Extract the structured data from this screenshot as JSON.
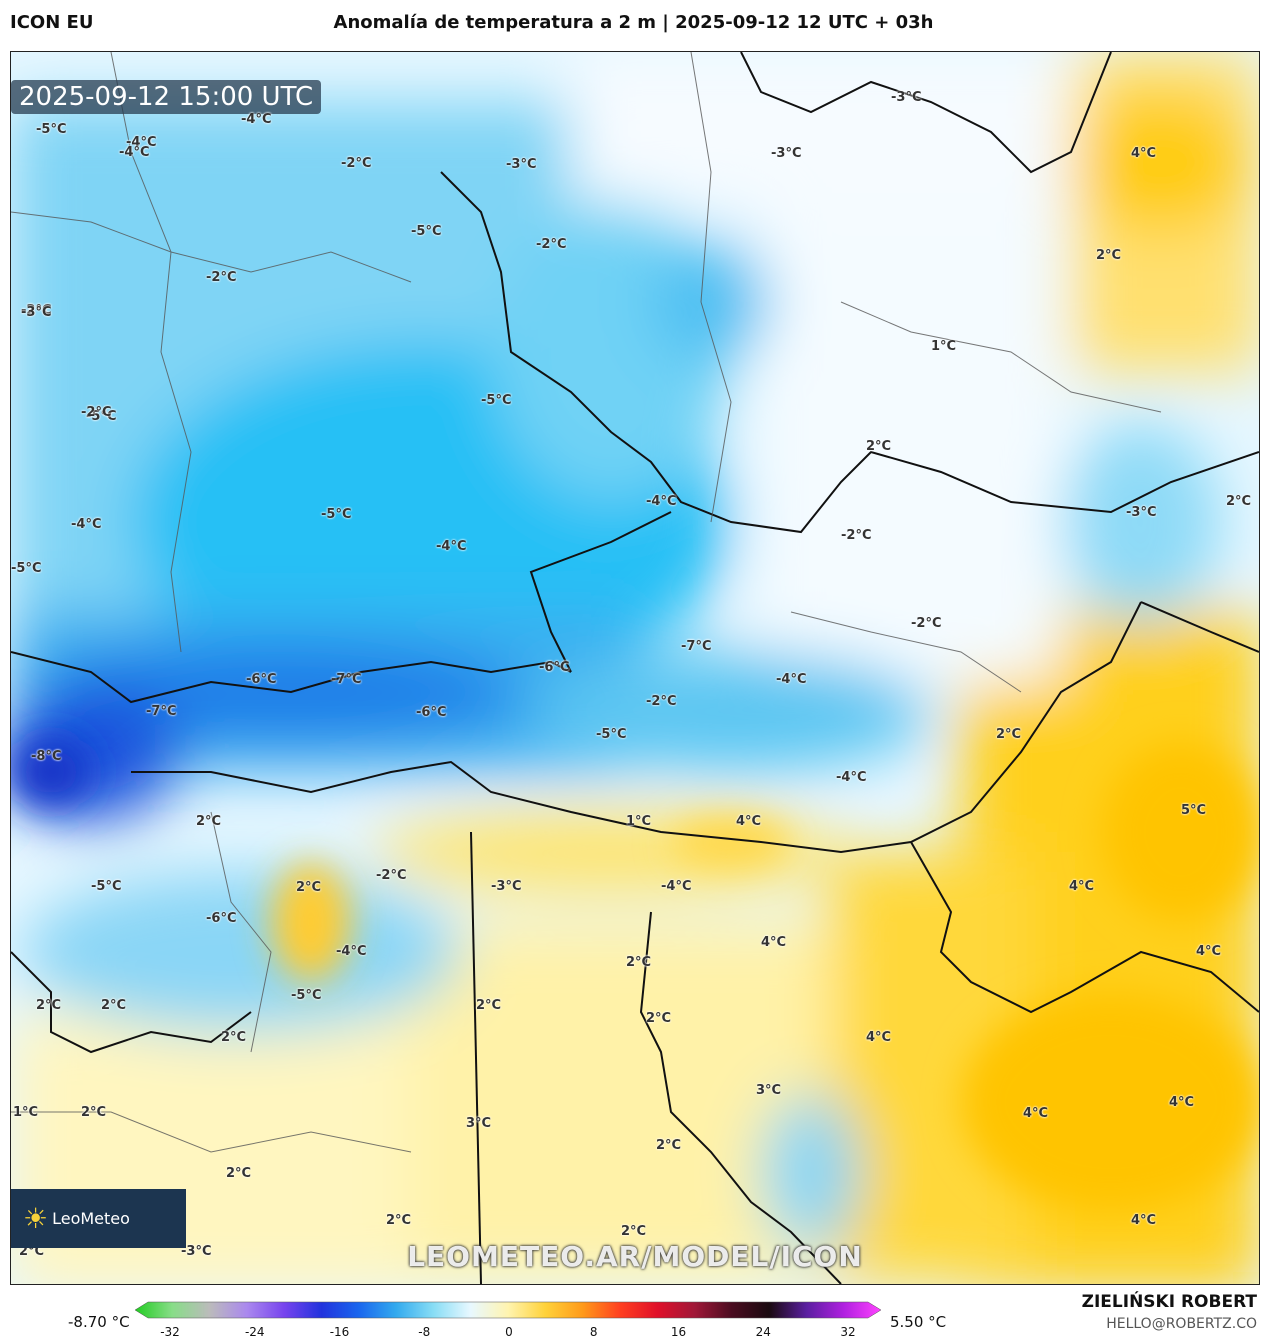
{
  "header": {
    "model": "ICON EU",
    "title": "Anomalía de temperatura a 2 m | 2025-09-12 12 UTC + 03h"
  },
  "map": {
    "timestamp": "2025-09-12 15:00 UTC",
    "watermark": "LEOMETEO.AR/MODEL/ICON",
    "logo_text": "LeoMeteo",
    "labels": [
      {
        "t": "-5°C"
      },
      {
        "t": "-4°C"
      },
      {
        "t": "-4°C"
      },
      {
        "t": "-2°C"
      },
      {
        "t": "-3°C"
      },
      {
        "t": "-3°C"
      },
      {
        "t": "-5°C"
      },
      {
        "t": "-2°C"
      },
      {
        "t": "-3°C"
      },
      {
        "t": "-2°C"
      },
      {
        "t": "4°C"
      },
      {
        "t": "-2°C"
      },
      {
        "t": "-3°C"
      },
      {
        "t": "-4°C"
      },
      {
        "t": "2°C"
      },
      {
        "t": "1°C"
      },
      {
        "t": "-5°C"
      },
      {
        "t": "-5°C"
      },
      {
        "t": "-2°C"
      },
      {
        "t": "2°C"
      },
      {
        "t": "-4°C"
      },
      {
        "t": "-5°C"
      },
      {
        "t": "-4°C"
      },
      {
        "t": "-3°C"
      },
      {
        "t": "2°C"
      },
      {
        "t": "-5°C"
      },
      {
        "t": "-2°C"
      },
      {
        "t": "-4°C"
      },
      {
        "t": "-2°C"
      },
      {
        "t": "-7°C"
      },
      {
        "t": "-6°C"
      },
      {
        "t": "-7°C"
      },
      {
        "t": "-6°C"
      },
      {
        "t": "-4°C"
      },
      {
        "t": "-7°C"
      },
      {
        "t": "-2°C"
      },
      {
        "t": "-6°C"
      },
      {
        "t": "-5°C"
      },
      {
        "t": "2°C"
      },
      {
        "t": "-8°C"
      },
      {
        "t": "-4°C"
      },
      {
        "t": "5°C"
      },
      {
        "t": "2°C"
      },
      {
        "t": "1°C"
      },
      {
        "t": "4°C"
      },
      {
        "t": "-5°C"
      },
      {
        "t": "2°C"
      },
      {
        "t": "-2°C"
      },
      {
        "t": "-3°C"
      },
      {
        "t": "-4°C"
      },
      {
        "t": "4°C"
      },
      {
        "t": "-6°C"
      },
      {
        "t": "-4°C"
      },
      {
        "t": "4°C"
      },
      {
        "t": "2°C"
      },
      {
        "t": "4°C"
      },
      {
        "t": "2°C"
      },
      {
        "t": "2°C"
      },
      {
        "t": "-5°C"
      },
      {
        "t": "2°C"
      },
      {
        "t": "2°C"
      },
      {
        "t": "4°C"
      },
      {
        "t": "2°C"
      },
      {
        "t": "3°C"
      },
      {
        "t": "1°C"
      },
      {
        "t": "2°C"
      },
      {
        "t": "3°C"
      },
      {
        "t": "2°C"
      },
      {
        "t": "4°C"
      },
      {
        "t": "4°C"
      },
      {
        "t": "2°C"
      },
      {
        "t": "2°C"
      },
      {
        "t": "2°C"
      },
      {
        "t": "-3°C"
      },
      {
        "t": "4°C"
      },
      {
        "t": "2°C"
      }
    ]
  },
  "legend": {
    "min_label": "-8.70 °C",
    "max_label": "5.50 °C",
    "ticks": [
      "-32",
      "-24",
      "-16",
      "-8",
      "0",
      "8",
      "16",
      "24",
      "32"
    ],
    "colors": [
      "#22cc22",
      "#88dd88",
      "#bbbbbb",
      "#aa88ee",
      "#7744ee",
      "#2233dd",
      "#1a66ee",
      "#33aaee",
      "#88ddf5",
      "#e8f8ff",
      "#fff4b0",
      "#ffd23a",
      "#ff9a1a",
      "#ff4020",
      "#e0102a",
      "#a01838",
      "#4a0c20",
      "#1a0a10",
      "#5a1fa0",
      "#b020e0",
      "#ff44ff"
    ]
  },
  "footer": {
    "author": "ZIELIŃSKI ROBERT",
    "email": "HELLO@ROBERTZ.CO"
  }
}
